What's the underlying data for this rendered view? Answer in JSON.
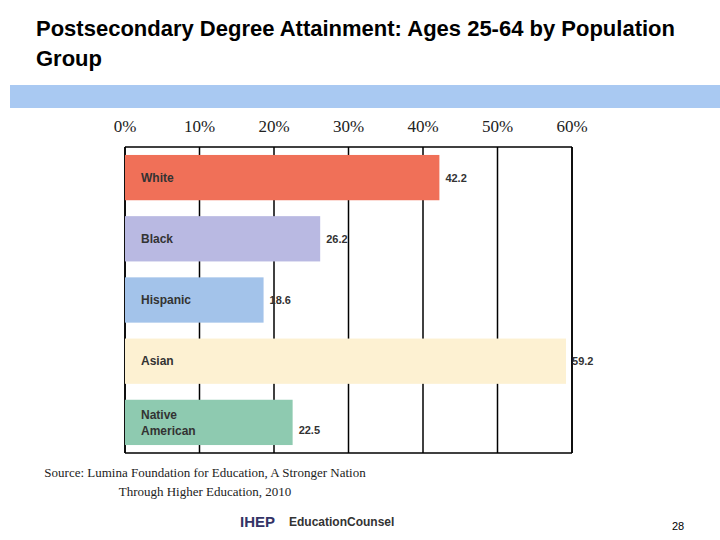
{
  "chart_data": {
    "type": "bar",
    "orientation": "horizontal",
    "title": "Postsecondary Degree Attainment: Ages 25-64 by Population Group",
    "categories": [
      "White",
      "Black",
      "Hispanic",
      "Asian",
      "Native American"
    ],
    "values": [
      42.2,
      26.2,
      18.6,
      59.2,
      22.5
    ],
    "colors": [
      "#f07058",
      "#b9b9e2",
      "#a3c3ea",
      "#fdf1d2",
      "#8ecab0"
    ],
    "xlim": [
      0,
      60
    ],
    "xticks": [
      {
        "value": 0,
        "label": "0%"
      },
      {
        "value": 10,
        "label": "10%"
      },
      {
        "value": 20,
        "label": "20%"
      },
      {
        "value": 30,
        "label": "30%"
      },
      {
        "value": 40,
        "label": "40%"
      },
      {
        "value": 50,
        "label": "50%"
      },
      {
        "value": 60,
        "label": "60%"
      }
    ],
    "grid": true,
    "data_labels": true,
    "annotations": [
      "Source: Lumina Foundation for Education, A Stronger Nation Through Higher Education, 2010"
    ]
  },
  "footer": {
    "logos": [
      "IHEP",
      "EducationCounsel"
    ],
    "page_number": 28
  }
}
